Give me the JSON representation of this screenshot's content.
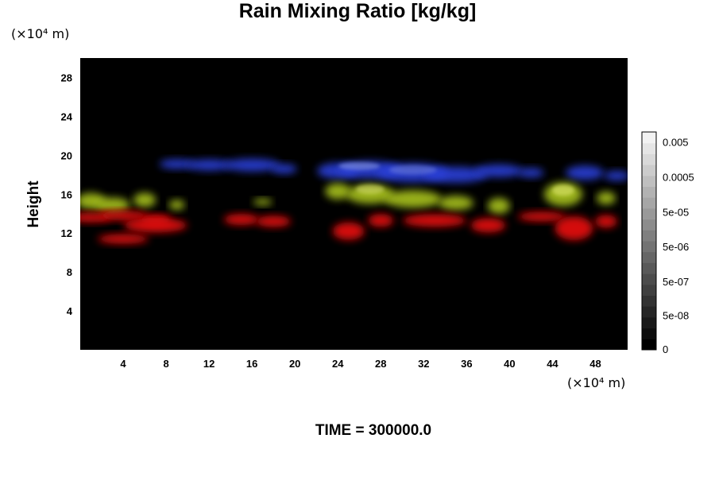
{
  "chart_data": {
    "type": "heatmap",
    "title": "Rain Mixing Ratio [kg/kg]",
    "ylabel": "Height",
    "xlabel": "",
    "x_unit": "(×10⁴ m)",
    "y_unit": "(×10⁴ m)",
    "xlim": [
      0,
      51
    ],
    "ylim": [
      0,
      30
    ],
    "x_ticks": [
      "4",
      "8",
      "12",
      "16",
      "20",
      "24",
      "28",
      "32",
      "36",
      "40",
      "44",
      "48"
    ],
    "x_tick_values": [
      4,
      8,
      12,
      16,
      20,
      24,
      28,
      32,
      36,
      40,
      44,
      48
    ],
    "y_ticks": [
      "4",
      "8",
      "12",
      "16",
      "20",
      "24",
      "28"
    ],
    "y_tick_values": [
      4,
      8,
      12,
      16,
      20,
      24,
      28
    ],
    "colorbar": {
      "labels": [
        "0.005",
        "0.0005",
        "5e-05",
        "5e-06",
        "5e-07",
        "5e-08",
        "0"
      ],
      "label_fractions": [
        0.95,
        0.79,
        0.63,
        0.47,
        0.31,
        0.155,
        0.0
      ],
      "levels": 20,
      "color_low": "#000000",
      "color_high": "#f2f2f2"
    },
    "background": "#000000",
    "structures": [
      {
        "name": "upper layer",
        "color": "#2a3fd8",
        "x_range": [
          7,
          51
        ],
        "y_range": [
          17,
          20
        ]
      },
      {
        "name": "middle layer",
        "color": "#a8c21c",
        "x_range": [
          0,
          51
        ],
        "y_range": [
          14,
          17
        ]
      },
      {
        "name": "lower layer",
        "color": "#e01010",
        "x_range": [
          0,
          51
        ],
        "y_range": [
          11,
          14
        ]
      }
    ]
  },
  "time_label": "TIME = 300000.0"
}
